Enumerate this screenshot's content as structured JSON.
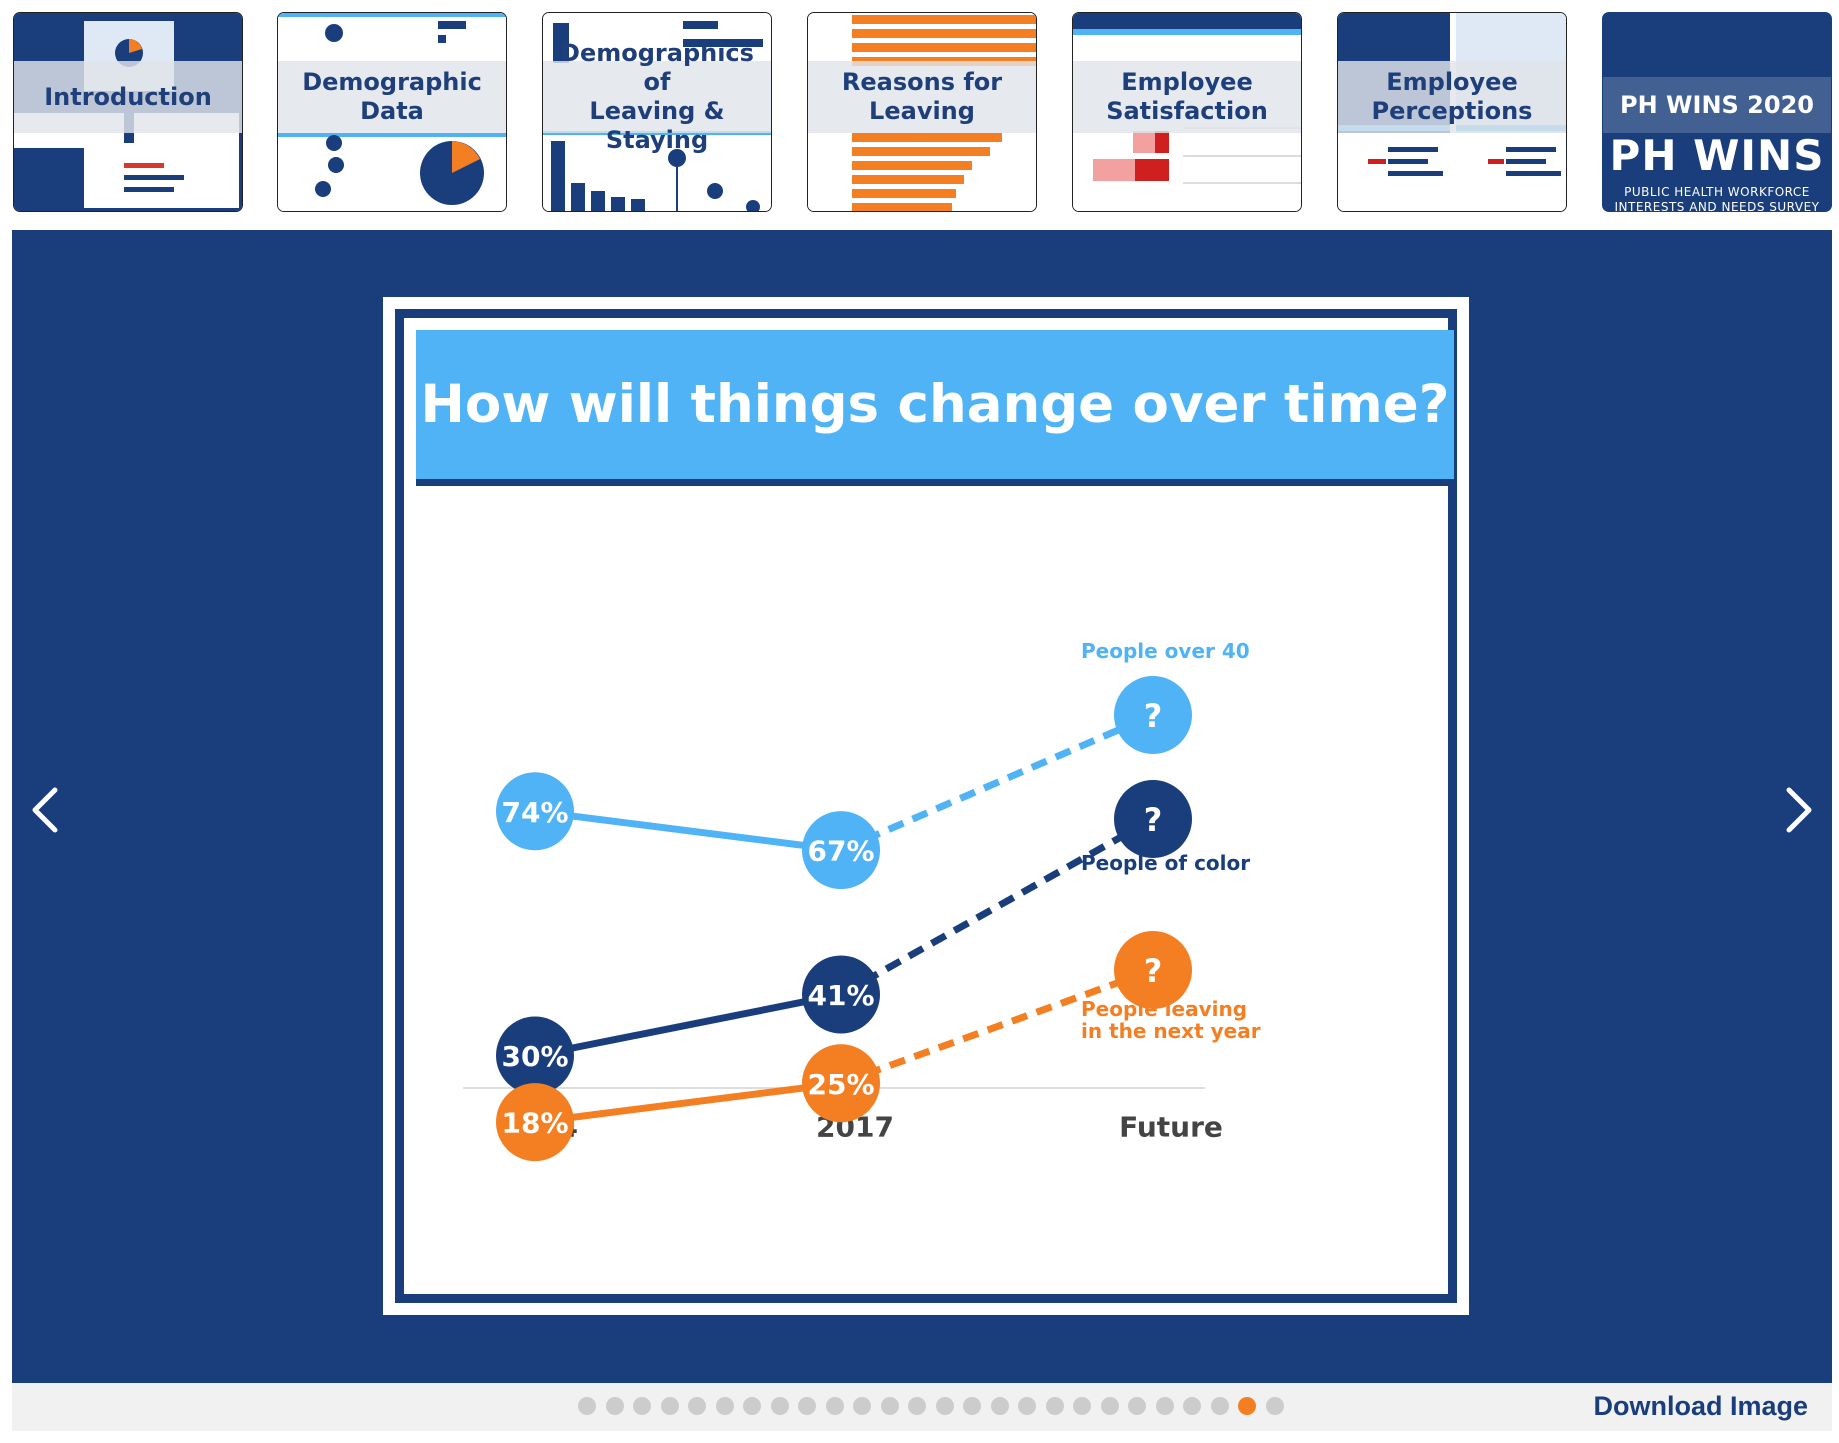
{
  "thumbnails": [
    {
      "label": "Introduction",
      "active": false
    },
    {
      "label": "Demographic Data",
      "active": false
    },
    {
      "label": "Demographics of\nLeaving & Staying",
      "active": false
    },
    {
      "label": "Reasons for\nLeaving",
      "active": false
    },
    {
      "label": "Employee\nSatisfaction",
      "active": false
    },
    {
      "label": "Employee\nPerceptions",
      "active": false
    },
    {
      "label": "PH WINS 2020",
      "active": true,
      "logo": "PH WINS",
      "subtitle": "PUBLIC HEALTH WORKFORCE\nINTERESTS AND NEEDS SURVEY"
    }
  ],
  "viewer": {
    "prev_icon": "chevron-left-icon",
    "next_icon": "chevron-right-icon"
  },
  "slide": {
    "title": "How will things change over time?"
  },
  "chart_data": {
    "type": "line",
    "title": "How will things change over time?",
    "categories": [
      "2014",
      "2017",
      "Future"
    ],
    "series": [
      {
        "name": "People over 40",
        "values": [
          74,
          67,
          null
        ],
        "labels": [
          "74%",
          "67%",
          "?"
        ],
        "color": "#4fb3f5"
      },
      {
        "name": "People of color",
        "values": [
          30,
          41,
          null
        ],
        "labels": [
          "30%",
          "41%",
          "?"
        ],
        "color": "#1a3e7c"
      },
      {
        "name": "People leaving\nin the next year",
        "values": [
          18,
          25,
          null
        ],
        "labels": [
          "18%",
          "25%",
          "?"
        ],
        "color": "#f37f22"
      }
    ],
    "future_marker": "?",
    "projection_style": "dashed",
    "legend": "inline-right",
    "grid": false
  },
  "pagination": {
    "total": 26,
    "current_index": 24
  },
  "footer": {
    "download_label": "Download Image"
  },
  "colors": {
    "navy": "#1a3e7c",
    "light_blue": "#4fb3f5",
    "orange": "#f37f22",
    "dot_inactive": "#cccccc"
  }
}
